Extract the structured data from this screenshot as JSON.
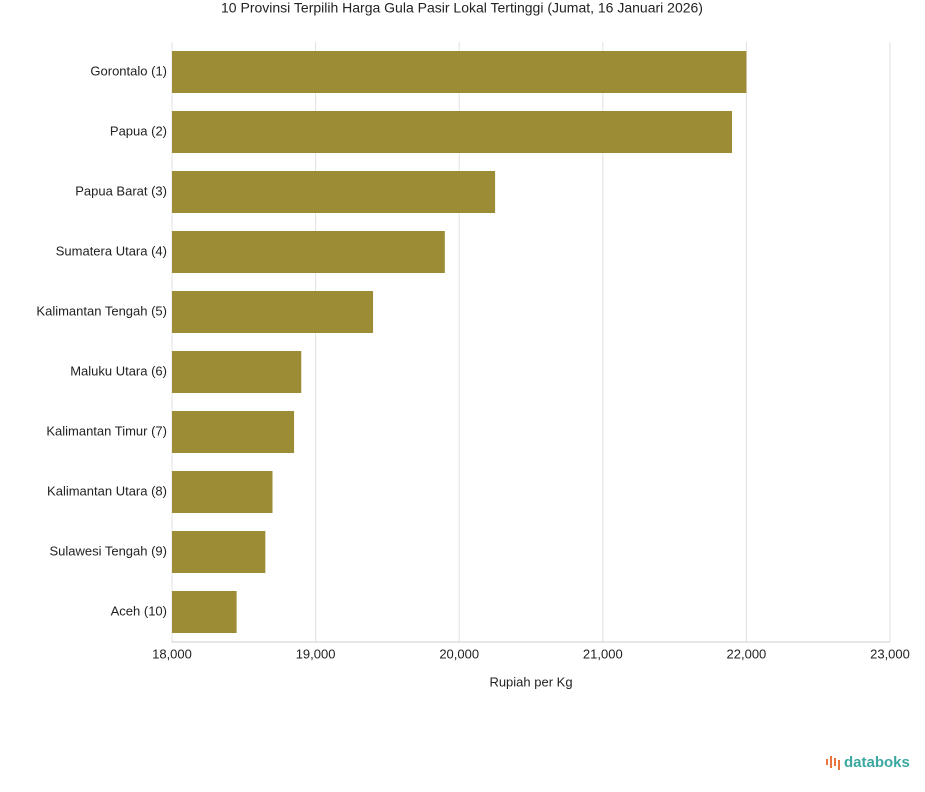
{
  "chart_data": {
    "type": "hbar",
    "title": "10 Provinsi Terpilih Harga Gula Pasir Lokal Tertinggi (Jumat, 16 Januari 2026)",
    "categories": [
      "Gorontalo (1)",
      "Papua (2)",
      "Papua Barat (3)",
      "Sumatera Utara (4)",
      "Kalimantan Tengah (5)",
      "Maluku Utara (6)",
      "Kalimantan Timur (7)",
      "Kalimantan Utara (8)",
      "Sulawesi Tengah (9)",
      "Aceh (10)"
    ],
    "values": [
      22000,
      21900,
      20250,
      19900,
      19400,
      18900,
      18850,
      18700,
      18650,
      18450
    ],
    "color": "#9c8c35",
    "xlabel": "Rupiah per Kg",
    "xlim": [
      18000,
      23000
    ],
    "xticks": [
      {
        "value": 18000,
        "label": "18,000"
      },
      {
        "value": 19000,
        "label": "19,000"
      },
      {
        "value": 20000,
        "label": "20,000"
      },
      {
        "value": 21000,
        "label": "21,000"
      },
      {
        "value": 22000,
        "label": "22,000"
      },
      {
        "value": 23000,
        "label": "23,000"
      }
    ],
    "grid": true
  },
  "logo": "databoks"
}
